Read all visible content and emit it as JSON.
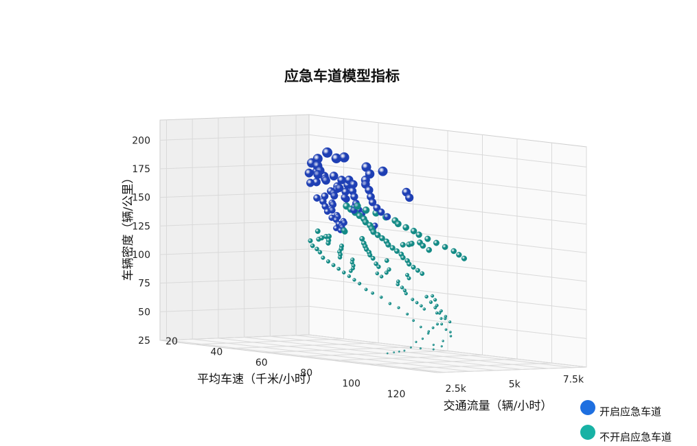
{
  "chart_data": {
    "type": "scatter",
    "title": "应急车道模型指标",
    "xlabel": "平均车速（千米/小时）",
    "ylabel": "交通流量（辆/小时）",
    "zlabel": "车辆密度（辆/公里）",
    "x_ticks": [
      "20",
      "40",
      "60",
      "80",
      "100",
      "120"
    ],
    "y_ticks": [
      "2.5k",
      "5k",
      "7.5k"
    ],
    "z_ticks": [
      "25",
      "50",
      "75",
      "100",
      "125",
      "150",
      "175",
      "200"
    ],
    "xlim": [
      10,
      125
    ],
    "ylim": [
      0,
      8000
    ],
    "zlim": [
      25,
      205
    ],
    "grid": true,
    "legend_position": "bottom-right",
    "series": [
      {
        "name": "开启应急车道",
        "color": "#1E3FB4",
        "legend_color": "#1E6FE0",
        "points": [
          [
            22,
            700,
            182
          ],
          [
            24,
            600,
            178
          ],
          [
            26,
            850,
            176
          ],
          [
            28,
            900,
            172
          ],
          [
            30,
            750,
            170
          ],
          [
            25,
            1000,
            168
          ],
          [
            27,
            1100,
            166
          ],
          [
            29,
            1200,
            165
          ],
          [
            31,
            1000,
            163
          ],
          [
            33,
            900,
            162
          ],
          [
            23,
            1300,
            160
          ],
          [
            26,
            1400,
            158
          ],
          [
            28,
            1300,
            156
          ],
          [
            30,
            1450,
            155
          ],
          [
            32,
            1550,
            153
          ],
          [
            34,
            1350,
            152
          ],
          [
            36,
            1200,
            150
          ],
          [
            38,
            1450,
            148
          ],
          [
            35,
            1600,
            147
          ],
          [
            37,
            1700,
            146
          ],
          [
            39,
            1550,
            144
          ],
          [
            41,
            1800,
            143
          ],
          [
            43,
            1900,
            142
          ],
          [
            40,
            1650,
            140
          ],
          [
            42,
            2000,
            138
          ],
          [
            44,
            2100,
            137
          ],
          [
            46,
            2000,
            136
          ],
          [
            48,
            2200,
            135
          ],
          [
            45,
            2300,
            134
          ],
          [
            47,
            2400,
            133
          ],
          [
            50,
            2350,
            132
          ],
          [
            52,
            2500,
            131
          ],
          [
            54,
            2600,
            130
          ],
          [
            56,
            2500,
            129
          ],
          [
            58,
            2700,
            128
          ],
          [
            33,
            1100,
            178
          ],
          [
            35,
            1250,
            174
          ],
          [
            38,
            1300,
            171
          ],
          [
            31,
            1500,
            170
          ],
          [
            29,
            1650,
            167
          ],
          [
            27,
            1750,
            163
          ],
          [
            36,
            1850,
            161
          ],
          [
            34,
            1950,
            158
          ],
          [
            40,
            2150,
            154
          ],
          [
            24,
            1600,
            150
          ],
          [
            22,
            1800,
            146
          ],
          [
            25,
            2000,
            142
          ],
          [
            28,
            2200,
            139
          ],
          [
            30,
            1900,
            168
          ],
          [
            32,
            2100,
            165
          ],
          [
            38,
            2300,
            160
          ],
          [
            42,
            2500,
            156
          ],
          [
            46,
            2700,
            151
          ],
          [
            50,
            2800,
            148
          ],
          [
            53,
            2900,
            146
          ],
          [
            20,
            900,
            188
          ],
          [
            21,
            1200,
            184
          ],
          [
            23,
            1500,
            186
          ],
          [
            30,
            2400,
            181
          ],
          [
            34,
            2650,
            176
          ],
          [
            44,
            2900,
            172
          ],
          [
            48,
            3050,
            169
          ],
          [
            52,
            3300,
            165
          ],
          [
            56,
            3500,
            160
          ],
          [
            60,
            3700,
            156
          ],
          [
            62,
            3900,
            152
          ],
          [
            64,
            4100,
            149
          ],
          [
            66,
            4350,
            146
          ],
          [
            26,
            2500,
            130
          ],
          [
            30,
            2600,
            128
          ],
          [
            36,
            3100,
            180
          ],
          [
            58,
            4600,
            168
          ],
          [
            61,
            4800,
            164
          ]
        ]
      },
      {
        "name": "不开启应急车道",
        "color": "#138A85",
        "legend_color": "#18B2A5",
        "points": [
          [
            30,
            1000,
            120
          ],
          [
            32,
            1400,
            117
          ],
          [
            35,
            1500,
            114
          ],
          [
            38,
            1600,
            112
          ],
          [
            33,
            1800,
            110
          ],
          [
            36,
            1900,
            108
          ],
          [
            40,
            2000,
            106
          ],
          [
            42,
            2100,
            104
          ],
          [
            45,
            2200,
            102
          ],
          [
            38,
            2300,
            100
          ],
          [
            41,
            2400,
            98
          ],
          [
            44,
            2550,
            96
          ],
          [
            47,
            2650,
            94
          ],
          [
            50,
            2700,
            92
          ],
          [
            35,
            2900,
            90
          ],
          [
            37,
            3100,
            88
          ],
          [
            48,
            2950,
            121
          ],
          [
            52,
            3150,
            118
          ],
          [
            55,
            3300,
            116
          ],
          [
            58,
            3450,
            114
          ],
          [
            60,
            3600,
            112
          ],
          [
            62,
            3700,
            110
          ],
          [
            65,
            3900,
            108
          ],
          [
            57,
            4000,
            106
          ],
          [
            68,
            4100,
            104
          ],
          [
            70,
            4250,
            102
          ],
          [
            66,
            4400,
            100
          ],
          [
            72,
            4550,
            98
          ],
          [
            60,
            4700,
            96
          ],
          [
            64,
            4900,
            94
          ],
          [
            75,
            5000,
            92
          ],
          [
            78,
            5100,
            90
          ],
          [
            80,
            5300,
            88
          ],
          [
            82,
            5450,
            86
          ],
          [
            85,
            5600,
            84
          ],
          [
            70,
            5800,
            82
          ],
          [
            88,
            5900,
            80
          ],
          [
            90,
            6100,
            78
          ],
          [
            92,
            6300,
            76
          ],
          [
            95,
            6500,
            74
          ],
          [
            48,
            2500,
            148
          ],
          [
            50,
            2700,
            146
          ],
          [
            52,
            2900,
            144
          ],
          [
            54,
            3100,
            142
          ],
          [
            56,
            3300,
            140
          ],
          [
            60,
            3500,
            138
          ],
          [
            62,
            3700,
            136
          ],
          [
            66,
            3900,
            134
          ],
          [
            70,
            4100,
            132
          ],
          [
            72,
            4300,
            130
          ],
          [
            74,
            4500,
            128
          ],
          [
            76,
            4700,
            126
          ],
          [
            80,
            4900,
            124
          ],
          [
            82,
            5100,
            122
          ],
          [
            84,
            5300,
            120
          ],
          [
            86,
            5500,
            118
          ],
          [
            90,
            5700,
            116
          ],
          [
            92,
            5900,
            114
          ],
          [
            96,
            6100,
            112
          ],
          [
            98,
            6300,
            110
          ],
          [
            100,
            6500,
            108
          ],
          [
            102,
            6700,
            106
          ],
          [
            85,
            6000,
            130
          ],
          [
            88,
            6200,
            128
          ],
          [
            94,
            6600,
            126
          ],
          [
            78,
            5500,
            127
          ],
          [
            72,
            5200,
            125
          ],
          [
            66,
            4800,
            123
          ],
          [
            74,
            3400,
            131
          ],
          [
            68,
            3200,
            129
          ],
          [
            100,
            7000,
            84
          ],
          [
            104,
            7200,
            80
          ],
          [
            106,
            7400,
            76
          ],
          [
            108,
            7600,
            72
          ],
          [
            110,
            7800,
            68
          ],
          [
            96,
            6900,
            72
          ],
          [
            98,
            7100,
            68
          ],
          [
            103,
            7300,
            64
          ],
          [
            105,
            7500,
            60
          ],
          [
            112,
            7900,
            56
          ],
          [
            115,
            8000,
            60
          ],
          [
            118,
            7900,
            52
          ],
          [
            120,
            7700,
            48
          ],
          [
            122,
            7400,
            44
          ],
          [
            111,
            7600,
            46
          ],
          [
            108,
            7250,
            42
          ],
          [
            100,
            6800,
            54
          ],
          [
            95,
            6400,
            58
          ],
          [
            90,
            6000,
            62
          ],
          [
            84,
            5600,
            66
          ],
          [
            80,
            5200,
            70
          ],
          [
            76,
            4800,
            72
          ],
          [
            72,
            4400,
            76
          ],
          [
            68,
            4000,
            78
          ],
          [
            65,
            3700,
            80
          ],
          [
            62,
            3400,
            84
          ],
          [
            58,
            3100,
            86
          ],
          [
            54,
            2800,
            88
          ],
          [
            50,
            2500,
            90
          ],
          [
            46,
            2200,
            92
          ],
          [
            42,
            1900,
            94
          ],
          [
            38,
            1600,
            96
          ],
          [
            34,
            1300,
            98
          ],
          [
            31,
            1100,
            102
          ],
          [
            28,
            900,
            104
          ],
          [
            26,
            700,
            106
          ],
          [
            25,
            600,
            110
          ],
          [
            24,
            800,
            112
          ],
          [
            27,
            1000,
            114
          ],
          [
            29,
            1200,
            116
          ],
          [
            53,
            3000,
            150
          ],
          [
            57,
            3400,
            148
          ],
          [
            60,
            3800,
            147
          ],
          [
            63,
            4200,
            145
          ],
          [
            64,
            4500,
            143
          ],
          [
            67,
            4700,
            141
          ],
          [
            69,
            5000,
            139
          ],
          [
            71,
            5300,
            137
          ],
          [
            75,
            5600,
            135
          ],
          [
            79,
            6000,
            133
          ],
          [
            83,
            6400,
            131
          ],
          [
            87,
            6800,
            129
          ],
          [
            91,
            7200,
            127
          ],
          [
            95,
            7500,
            125
          ],
          [
            99,
            7800,
            123
          ],
          [
            112,
            7200,
            88
          ],
          [
            114,
            7400,
            84
          ],
          [
            116,
            7600,
            80
          ],
          [
            118,
            7800,
            76
          ],
          [
            119,
            8000,
            72
          ],
          [
            117,
            7700,
            66
          ],
          [
            115,
            7500,
            62
          ],
          [
            113,
            7300,
            58
          ],
          [
            107,
            6900,
            50
          ],
          [
            104,
            6600,
            46
          ],
          [
            100,
            6300,
            40
          ],
          [
            97,
            6000,
            36
          ],
          [
            93,
            5700,
            34
          ],
          [
            89,
            5400,
            32
          ],
          [
            86,
            5100,
            30
          ]
        ]
      }
    ]
  }
}
